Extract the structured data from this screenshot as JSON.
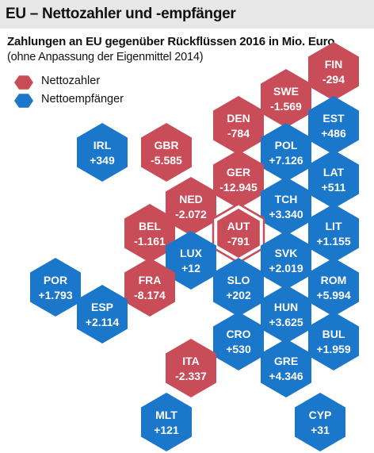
{
  "header": {
    "title": "EU – Nettozahler und -empfänger",
    "subtitle": "Zahlungen an EU gegenüber Rückflüssen 2016 in Mio. Euro",
    "note": "(ohne Anpassung der Eigenmittel 2014)"
  },
  "colors": {
    "net_payer": "#c94d58",
    "net_receiver": "#1a77c9",
    "title_bar": "#e7e7e7",
    "highlight_fill": "#ffffff"
  },
  "legend": [
    {
      "label": "Nettozahler",
      "series": "net_payer"
    },
    {
      "label": "Nettoempfänger",
      "series": "net_receiver"
    }
  ],
  "chart_data": {
    "type": "table",
    "layout": "hexagon tile map",
    "categories": [
      "FIN",
      "SWE",
      "EST",
      "DEN",
      "POL",
      "IRL",
      "GBR",
      "LAT",
      "GER",
      "TCH",
      "NED",
      "BEL",
      "AUT",
      "LIT",
      "LUX",
      "SVK",
      "POR",
      "FRA",
      "SLO",
      "ROM",
      "ESP",
      "HUN",
      "CRO",
      "BUL",
      "ITA",
      "GRE",
      "MLT",
      "CYP"
    ],
    "tiles": [
      {
        "code": "FIN",
        "label": "-294",
        "value": -294,
        "series": "net_payer"
      },
      {
        "code": "SWE",
        "label": "-1.569",
        "value": -1569,
        "series": "net_payer"
      },
      {
        "code": "EST",
        "label": "+486",
        "value": 486,
        "series": "net_receiver"
      },
      {
        "code": "DEN",
        "label": "-784",
        "value": -784,
        "series": "net_payer"
      },
      {
        "code": "POL",
        "label": "+7.126",
        "value": 7126,
        "series": "net_receiver"
      },
      {
        "code": "IRL",
        "label": "+349",
        "value": 349,
        "series": "net_receiver"
      },
      {
        "code": "GBR",
        "label": "-5.585",
        "value": -5585,
        "series": "net_payer"
      },
      {
        "code": "LAT",
        "label": "+511",
        "value": 511,
        "series": "net_receiver"
      },
      {
        "code": "GER",
        "label": "-12.945",
        "value": -12945,
        "series": "net_payer"
      },
      {
        "code": "TCH",
        "label": "+3.340",
        "value": 3340,
        "series": "net_receiver"
      },
      {
        "code": "NED",
        "label": "-2.072",
        "value": -2072,
        "series": "net_payer"
      },
      {
        "code": "BEL",
        "label": "-1.161",
        "value": -1161,
        "series": "net_payer"
      },
      {
        "code": "AUT",
        "label": "-791",
        "value": -791,
        "series": "net_payer",
        "highlight": true
      },
      {
        "code": "LIT",
        "label": "+1.155",
        "value": 1155,
        "series": "net_receiver"
      },
      {
        "code": "LUX",
        "label": "+12",
        "value": 12,
        "series": "net_receiver"
      },
      {
        "code": "SVK",
        "label": "+2.019",
        "value": 2019,
        "series": "net_receiver"
      },
      {
        "code": "POR",
        "label": "+1.793",
        "value": 1793,
        "series": "net_receiver"
      },
      {
        "code": "FRA",
        "label": "-8.174",
        "value": -8174,
        "series": "net_payer"
      },
      {
        "code": "SLO",
        "label": "+202",
        "value": 202,
        "series": "net_receiver"
      },
      {
        "code": "ROM",
        "label": "+5.994",
        "value": 5994,
        "series": "net_receiver"
      },
      {
        "code": "ESP",
        "label": "+2.114",
        "value": 2114,
        "series": "net_receiver"
      },
      {
        "code": "HUN",
        "label": "+3.625",
        "value": 3625,
        "series": "net_receiver"
      },
      {
        "code": "CRO",
        "label": "+530",
        "value": 530,
        "series": "net_receiver"
      },
      {
        "code": "BUL",
        "label": "+1.959",
        "value": 1959,
        "series": "net_receiver"
      },
      {
        "code": "ITA",
        "label": "-2.337",
        "value": -2337,
        "series": "net_payer"
      },
      {
        "code": "GRE",
        "label": "+4.346",
        "value": 4346,
        "series": "net_receiver"
      },
      {
        "code": "MLT",
        "label": "+121",
        "value": 121,
        "series": "net_receiver"
      },
      {
        "code": "CYP",
        "label": "+31",
        "value": 31,
        "series": "net_receiver"
      }
    ]
  }
}
